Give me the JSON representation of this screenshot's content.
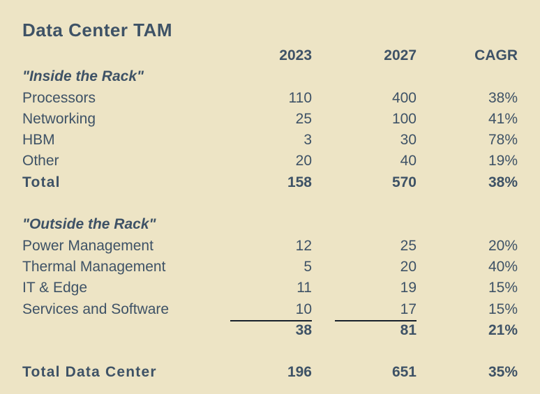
{
  "chart_data": {
    "type": "table",
    "title": "Data Center TAM",
    "columns": [
      "",
      "2023",
      "2027",
      "CAGR"
    ],
    "rows": [
      [
        "\"Inside the Rack\"",
        "",
        "",
        ""
      ],
      [
        "Processors",
        110,
        400,
        "38%"
      ],
      [
        "Networking",
        25,
        100,
        "41%"
      ],
      [
        "HBM",
        3,
        30,
        "78%"
      ],
      [
        "Other",
        20,
        40,
        "19%"
      ],
      [
        "Total",
        158,
        570,
        "38%"
      ],
      [
        "\"Outside the Rack\"",
        "",
        "",
        ""
      ],
      [
        "Power Management",
        12,
        25,
        "20%"
      ],
      [
        "Thermal Management",
        5,
        20,
        "40%"
      ],
      [
        "IT & Edge",
        11,
        19,
        "15%"
      ],
      [
        "Services and Software",
        10,
        17,
        "15%"
      ],
      [
        "",
        38,
        81,
        "21%"
      ],
      [
        "Total Data Center",
        196,
        651,
        "35%"
      ]
    ],
    "layout": {
      "sum_underline_after_row": "Services and Software",
      "bold_rows": [
        "Total",
        "",
        "Total Data Center"
      ],
      "section_header_rows": [
        "\"Inside the Rack\"",
        "\"Outside the Rack\""
      ]
    }
  },
  "colors": {
    "background": "#EDE4C5",
    "text": "#3E5266",
    "rule": "#17202B"
  }
}
